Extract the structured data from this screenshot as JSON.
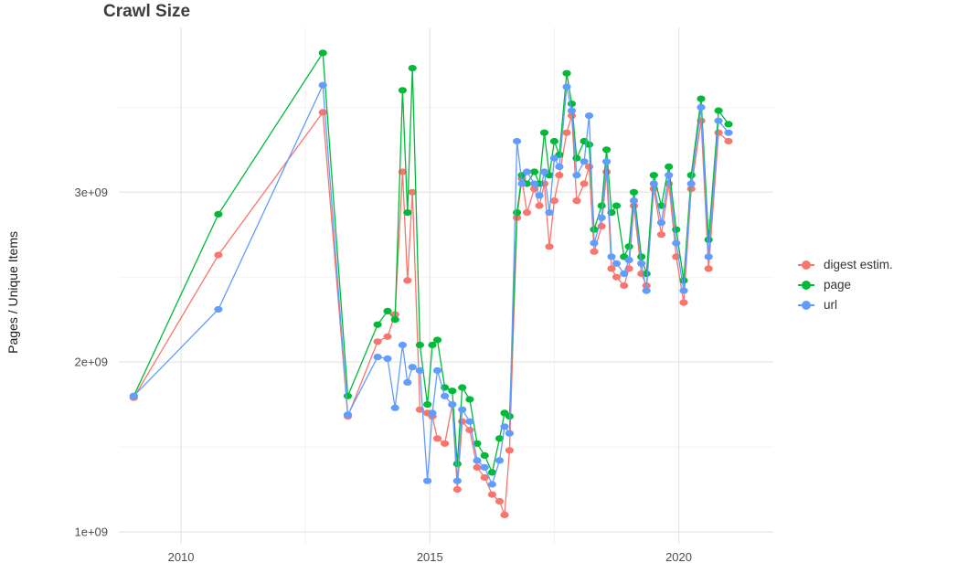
{
  "chart_data": {
    "type": "line",
    "title": "Crawl Size",
    "xlabel": "",
    "ylabel": "Pages / Unique Items",
    "y_unit": "1e9 (billions of pages / unique items)",
    "grid": "on",
    "legend_position": "right",
    "xlim": [
      2008.75,
      2021.9
    ],
    "ylim": [
      0.93,
      3.97
    ],
    "x_ticks": [
      {
        "value": 2010,
        "label": "2010"
      },
      {
        "value": 2015,
        "label": "2015"
      },
      {
        "value": 2020,
        "label": "2020"
      }
    ],
    "y_ticks": [
      {
        "value": 1,
        "label": "1e+09"
      },
      {
        "value": 2,
        "label": "2e+09"
      },
      {
        "value": 3,
        "label": "3e+09"
      }
    ],
    "x_minor_gridlines": [
      2012.5,
      2017.5
    ],
    "y_minor_gridlines": [
      1.5,
      2.5,
      3.5
    ],
    "x": [
      2009.05,
      2010.75,
      2012.85,
      2013.35,
      2013.95,
      2014.15,
      2014.3,
      2014.45,
      2014.55,
      2014.65,
      2014.8,
      2014.95,
      2015.05,
      2015.15,
      2015.3,
      2015.45,
      2015.55,
      2015.65,
      2015.8,
      2015.95,
      2016.1,
      2016.25,
      2016.4,
      2016.5,
      2016.6,
      2016.75,
      2016.85,
      2016.95,
      2017.1,
      2017.2,
      2017.3,
      2017.4,
      2017.5,
      2017.6,
      2017.75,
      2017.85,
      2017.95,
      2018.1,
      2018.2,
      2018.3,
      2018.45,
      2018.55,
      2018.65,
      2018.75,
      2018.9,
      2019.0,
      2019.1,
      2019.25,
      2019.35,
      2019.5,
      2019.65,
      2019.8,
      2019.95,
      2020.1,
      2020.25,
      2020.45,
      2020.6,
      2020.8,
      2021.0
    ],
    "series": [
      {
        "name": "digest estim.",
        "color": "#F8766D",
        "values": [
          1.79,
          2.63,
          3.47,
          1.68,
          2.12,
          2.15,
          2.28,
          3.12,
          2.48,
          3.0,
          1.72,
          1.7,
          1.68,
          1.55,
          1.52,
          1.75,
          1.25,
          1.65,
          1.6,
          1.38,
          1.32,
          1.22,
          1.18,
          1.1,
          1.48,
          2.85,
          3.08,
          2.88,
          3.02,
          2.92,
          3.05,
          2.68,
          2.95,
          3.1,
          3.35,
          3.45,
          2.95,
          3.05,
          3.15,
          2.65,
          2.8,
          3.12,
          2.55,
          2.5,
          2.45,
          2.55,
          2.92,
          2.52,
          2.45,
          3.02,
          2.75,
          3.05,
          2.62,
          2.35,
          3.02,
          3.42,
          2.55,
          3.35,
          3.3
        ]
      },
      {
        "name": "page",
        "color": "#00BA38",
        "values": [
          1.8,
          2.87,
          3.82,
          1.8,
          2.22,
          2.3,
          2.25,
          3.6,
          2.88,
          3.73,
          2.1,
          1.75,
          2.1,
          2.13,
          1.85,
          1.83,
          1.4,
          1.85,
          1.78,
          1.52,
          1.45,
          1.35,
          1.55,
          1.7,
          1.68,
          2.88,
          3.1,
          3.05,
          3.12,
          3.05,
          3.35,
          3.1,
          3.3,
          3.22,
          3.7,
          3.52,
          3.2,
          3.3,
          3.28,
          2.78,
          2.92,
          3.25,
          2.88,
          2.92,
          2.62,
          2.68,
          3.0,
          2.62,
          2.52,
          3.1,
          2.92,
          3.15,
          2.78,
          2.48,
          3.1,
          3.55,
          2.72,
          3.48,
          3.4
        ]
      },
      {
        "name": "url",
        "color": "#619CFF",
        "values": [
          1.8,
          2.31,
          3.63,
          1.69,
          2.03,
          2.02,
          1.73,
          2.1,
          1.88,
          1.97,
          1.95,
          1.3,
          1.7,
          1.95,
          1.8,
          1.75,
          1.3,
          1.72,
          1.65,
          1.42,
          1.38,
          1.28,
          1.42,
          1.62,
          1.58,
          3.3,
          3.05,
          3.12,
          3.05,
          2.98,
          3.12,
          2.88,
          3.2,
          3.15,
          3.62,
          3.48,
          3.1,
          3.18,
          3.45,
          2.7,
          2.85,
          3.18,
          2.62,
          2.58,
          2.52,
          2.6,
          2.95,
          2.58,
          2.42,
          3.05,
          2.82,
          3.1,
          2.7,
          2.42,
          3.05,
          3.5,
          2.62,
          3.42,
          3.35
        ]
      }
    ]
  }
}
